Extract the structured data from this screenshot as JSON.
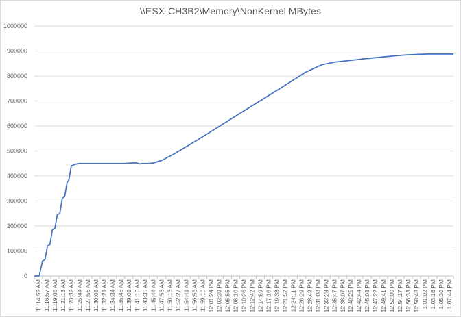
{
  "chart_data": {
    "type": "line",
    "title": "\\\\ESX-CH3B2\\Memory\\NonKernel  MBytes",
    "xlabel": "",
    "ylabel": "",
    "ylim": [
      0,
      1000000
    ],
    "yticks": [
      0,
      100000,
      200000,
      300000,
      400000,
      500000,
      600000,
      700000,
      800000,
      900000,
      1000000
    ],
    "ytick_labels": [
      "0",
      "100000",
      "200000",
      "300000",
      "400000",
      "500000",
      "600000",
      "700000",
      "800000",
      "900000",
      "1000000"
    ],
    "grid": true,
    "legend": "none",
    "line_color": "#4472c4",
    "categories": [
      "11:14:52 AM",
      "11:16:57 AM",
      "11:19:05 AM",
      "11:21:18 AM",
      "11:23:32 AM",
      "11:25:44 AM",
      "11:27:56 AM",
      "11:30:08 AM",
      "11:32:21 AM",
      "11:34:34 AM",
      "11:36:48 AM",
      "11:39:02 AM",
      "11:41:16 AM",
      "11:43:30 AM",
      "11:45:44 AM",
      "11:47:58 AM",
      "11:50:13 AM",
      "11:52:27 AM",
      "11:54:41 AM",
      "11:56:56 AM",
      "11:59:10 AM",
      "12:01:24 PM",
      "12:03:39 PM",
      "12:05:55 PM",
      "12:08:10 PM",
      "12:10:26 PM",
      "12:12:42 PM",
      "12:14:59 PM",
      "12:17:16 PM",
      "12:19:33 PM",
      "12:21:52 PM",
      "12:24:11 PM",
      "12:26:29 PM",
      "12:28:49 PM",
      "12:31:08 PM",
      "12:33:28 PM",
      "12:35:47 PM",
      "12:38:07 PM",
      "12:40:25 PM",
      "12:42:44 PM",
      "12:45:03 PM",
      "12:47:22 PM",
      "12:49:41 PM",
      "12:52:00 PM",
      "12:54:17 PM",
      "12:56:33 PM",
      "12:58:48 PM",
      "1:01:02 PM",
      "1:03:16 PM",
      "1:05:30 PM",
      "1:07:44 PM"
    ],
    "series": [
      {
        "name": "",
        "points": [
          [
            0,
            0
          ],
          [
            0.6,
            0
          ],
          [
            1.0,
            60000
          ],
          [
            1.3,
            65000
          ],
          [
            1.6,
            120000
          ],
          [
            1.9,
            125000
          ],
          [
            2.2,
            185000
          ],
          [
            2.5,
            190000
          ],
          [
            2.8,
            245000
          ],
          [
            3.1,
            250000
          ],
          [
            3.4,
            310000
          ],
          [
            3.7,
            318000
          ],
          [
            4.0,
            375000
          ],
          [
            4.2,
            383000
          ],
          [
            4.5,
            440000
          ],
          [
            5.0,
            447000
          ],
          [
            5.5,
            450000
          ],
          [
            6.0,
            450000
          ],
          [
            7.0,
            450000
          ],
          [
            8.0,
            450000
          ],
          [
            9.0,
            450000
          ],
          [
            10.0,
            450000
          ],
          [
            11.0,
            450000
          ],
          [
            12.0,
            452000
          ],
          [
            12.5,
            452000
          ],
          [
            12.8,
            448000
          ],
          [
            13.2,
            450000
          ],
          [
            14.0,
            450000
          ],
          [
            14.5,
            452000
          ],
          [
            15.5,
            462000
          ],
          [
            17.0,
            488000
          ],
          [
            20.0,
            547000
          ],
          [
            25.0,
            650000
          ],
          [
            30.0,
            752000
          ],
          [
            33.0,
            815000
          ],
          [
            35.0,
            845000
          ],
          [
            36.5,
            855000
          ],
          [
            40.0,
            868000
          ],
          [
            43.0,
            878000
          ],
          [
            45.0,
            884000
          ],
          [
            47.0,
            887000
          ],
          [
            48.0,
            888000
          ],
          [
            49.0,
            888000
          ],
          [
            50.0,
            888000
          ],
          [
            51.0,
            888000
          ]
        ]
      }
    ]
  }
}
